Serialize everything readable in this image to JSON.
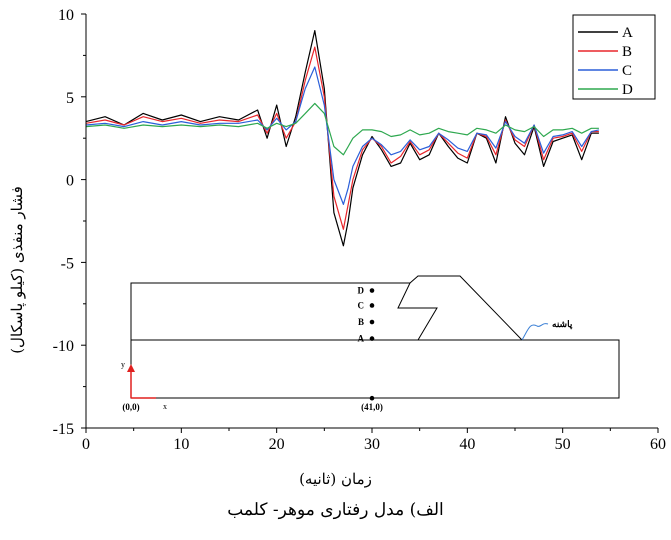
{
  "chart_data": {
    "type": "line",
    "title": "",
    "xlabel": "زمان (ثانیه)",
    "ylabel": "فشار منفذی (کیلو پاسکال)",
    "caption": "الف) مدل رفتاری موهر- کلمب",
    "xlim": [
      0,
      60
    ],
    "ylim": [
      -15,
      10
    ],
    "x_ticks": [
      "0",
      "10",
      "20",
      "30",
      "40",
      "50",
      "60"
    ],
    "y_ticks": [
      "10",
      "5",
      "0",
      "-5",
      "-10",
      "-15"
    ],
    "legend_position": "top-right",
    "series": [
      {
        "name": "A",
        "color": "#000000",
        "x": [
          0,
          2,
          4,
          6,
          8,
          10,
          12,
          14,
          16,
          18,
          19,
          20,
          21,
          22,
          23,
          24,
          25,
          26,
          27,
          27.5,
          28,
          29,
          30,
          31,
          32,
          33,
          34,
          35,
          36,
          37,
          38,
          39,
          40,
          41,
          42,
          43,
          44,
          45,
          46,
          47,
          48,
          49,
          50,
          51,
          52,
          53,
          53.8
        ],
        "y": [
          3.5,
          3.8,
          3.3,
          4.0,
          3.6,
          3.9,
          3.5,
          3.8,
          3.6,
          4.2,
          2.5,
          4.5,
          2.0,
          3.8,
          6.5,
          9.0,
          5.5,
          -2.0,
          -4.0,
          -2.5,
          -0.5,
          1.5,
          2.6,
          1.8,
          0.8,
          1.0,
          2.2,
          1.2,
          1.5,
          2.8,
          2.0,
          1.3,
          1.0,
          2.8,
          2.5,
          1.0,
          3.8,
          2.2,
          1.5,
          3.2,
          0.8,
          2.3,
          2.5,
          2.7,
          1.2,
          2.8,
          2.8
        ]
      },
      {
        "name": "B",
        "color": "#e8262b",
        "x": [
          0,
          2,
          4,
          6,
          8,
          10,
          12,
          14,
          16,
          18,
          19,
          20,
          21,
          22,
          23,
          24,
          25,
          26,
          27,
          27.5,
          28,
          29,
          30,
          31,
          32,
          33,
          34,
          35,
          36,
          37,
          38,
          39,
          40,
          41,
          42,
          43,
          44,
          45,
          46,
          47,
          48,
          49,
          50,
          51,
          52,
          53,
          53.8
        ],
        "y": [
          3.4,
          3.6,
          3.3,
          3.8,
          3.5,
          3.7,
          3.4,
          3.6,
          3.5,
          3.9,
          2.8,
          4.0,
          2.5,
          3.5,
          6.0,
          8.0,
          5.0,
          -1.0,
          -3.0,
          -1.5,
          0.0,
          1.8,
          2.5,
          2.0,
          1.0,
          1.4,
          2.3,
          1.5,
          1.8,
          2.8,
          2.2,
          1.6,
          1.3,
          2.8,
          2.6,
          1.5,
          3.6,
          2.4,
          2.0,
          3.3,
          1.2,
          2.5,
          2.6,
          2.8,
          1.7,
          2.9,
          2.9
        ]
      },
      {
        "name": "C",
        "color": "#2b5fd9",
        "x": [
          0,
          2,
          4,
          6,
          8,
          10,
          12,
          14,
          16,
          18,
          19,
          20,
          21,
          22,
          23,
          24,
          25,
          26,
          27,
          27.5,
          28,
          29,
          30,
          31,
          32,
          33,
          34,
          35,
          36,
          37,
          38,
          39,
          40,
          41,
          42,
          43,
          44,
          45,
          46,
          47,
          48,
          49,
          50,
          51,
          52,
          53,
          53.8
        ],
        "y": [
          3.3,
          3.4,
          3.2,
          3.5,
          3.3,
          3.5,
          3.3,
          3.4,
          3.4,
          3.6,
          3.0,
          3.7,
          3.0,
          3.5,
          5.5,
          6.8,
          4.5,
          0.0,
          -1.5,
          -0.5,
          0.8,
          2.0,
          2.5,
          2.1,
          1.5,
          1.7,
          2.4,
          1.8,
          2.0,
          2.8,
          2.4,
          1.9,
          1.7,
          2.8,
          2.7,
          1.9,
          3.5,
          2.6,
          2.2,
          3.3,
          1.6,
          2.6,
          2.7,
          2.9,
          2.0,
          2.9,
          3.0
        ]
      },
      {
        "name": "D",
        "color": "#2ea84f",
        "x": [
          0,
          2,
          4,
          6,
          8,
          10,
          12,
          14,
          16,
          18,
          19,
          20,
          21,
          22,
          23,
          24,
          25,
          26,
          27,
          27.5,
          28,
          29,
          30,
          31,
          32,
          33,
          34,
          35,
          36,
          37,
          38,
          39,
          40,
          41,
          42,
          43,
          44,
          45,
          46,
          47,
          48,
          49,
          50,
          51,
          52,
          53,
          53.8
        ],
        "y": [
          3.2,
          3.3,
          3.1,
          3.3,
          3.2,
          3.3,
          3.2,
          3.3,
          3.2,
          3.4,
          3.1,
          3.4,
          3.2,
          3.4,
          4.0,
          4.6,
          4.0,
          2.0,
          1.5,
          2.0,
          2.5,
          3.0,
          3.0,
          2.9,
          2.6,
          2.7,
          3.0,
          2.7,
          2.8,
          3.1,
          2.9,
          2.8,
          2.7,
          3.1,
          3.0,
          2.8,
          3.3,
          3.0,
          2.9,
          3.2,
          2.6,
          3.0,
          3.0,
          3.1,
          2.8,
          3.1,
          3.1
        ]
      }
    ],
    "inset": {
      "points": [
        {
          "label": "D",
          "x": 30,
          "y": -6.7
        },
        {
          "label": "C",
          "x": 30,
          "y": -7.6
        },
        {
          "label": "B",
          "x": 30,
          "y": -8.6
        },
        {
          "label": "A",
          "x": 30,
          "y": -9.6
        },
        {
          "label": "(41,0)",
          "x": 30,
          "y": -13.2
        }
      ],
      "origin_label": "(0,0)",
      "x_axis_label": "x",
      "y_axis_label": "y",
      "annotation": "پاشنه"
    }
  }
}
